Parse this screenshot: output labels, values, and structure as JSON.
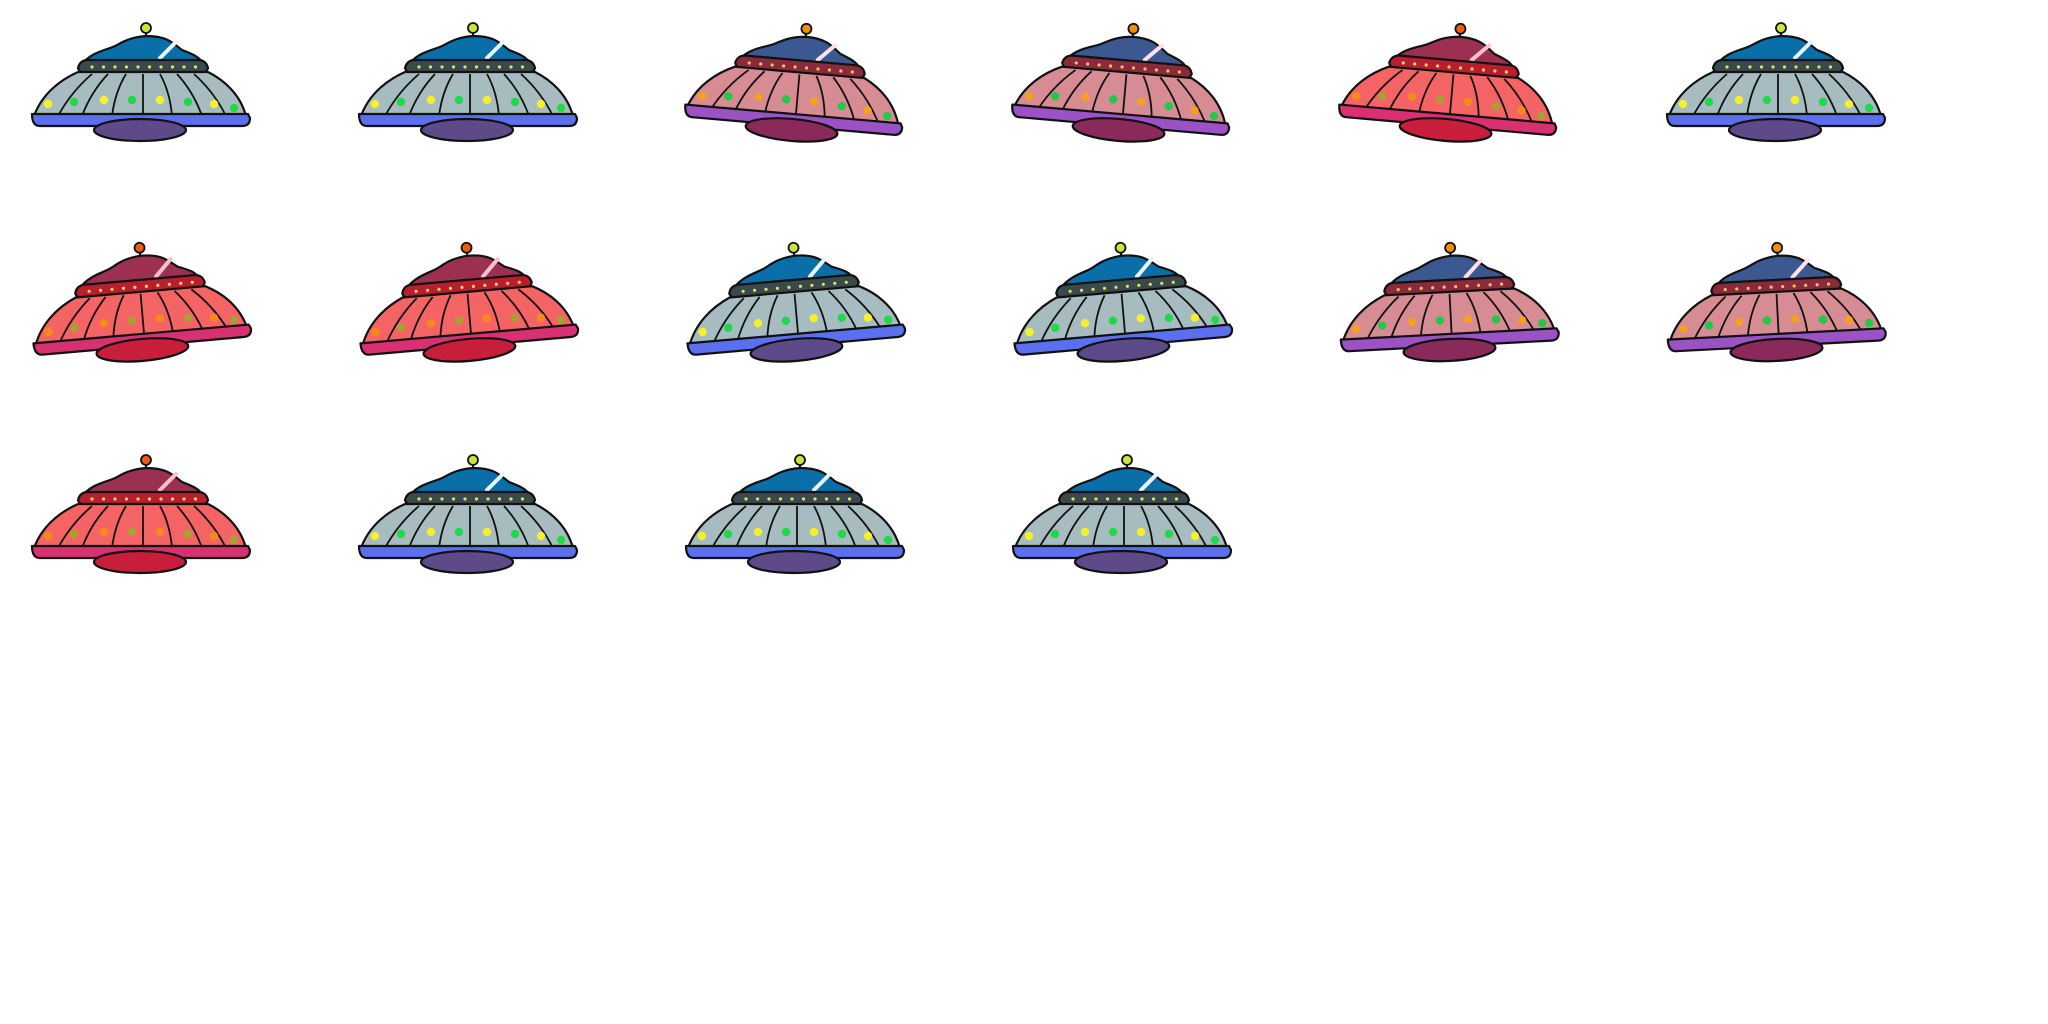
{
  "palettes": {
    "blue": {
      "dome": "#0a6fa8",
      "dome_highlight": "#e8f4ff",
      "antenna": "#c6e83a",
      "band": "#3a4a4a",
      "band_lights": "#d8e070",
      "body": "#a6bcc0",
      "rim": "#5a70f0",
      "belly": "#5d4a88",
      "lights": [
        "#f4f02a",
        "#22d84a"
      ]
    },
    "rose": {
      "dome": "#3c5890",
      "dome_highlight": "#ffe0e8",
      "antenna": "#f0900a",
      "band": "#8a2a3a",
      "band_lights": "#f0c070",
      "body": "#d68c92",
      "rim": "#9b52c4",
      "belly": "#8a2a5a",
      "lights": [
        "#f5a020",
        "#22c84a"
      ]
    },
    "red": {
      "dome": "#9c3050",
      "dome_highlight": "#ffc0cc",
      "antenna": "#f05a10",
      "band": "#b81e2c",
      "band_lights": "#f0d080",
      "body": "#f56464",
      "rim": "#d83070",
      "belly": "#c81e3c",
      "lights": [
        "#f58a1a",
        "#a8a030"
      ]
    }
  },
  "sprites": [
    {
      "palette": "blue",
      "tilt": 0
    },
    {
      "palette": "blue",
      "tilt": 0
    },
    {
      "palette": "rose",
      "tilt": 5
    },
    {
      "palette": "rose",
      "tilt": 5
    },
    {
      "palette": "red",
      "tilt": 5
    },
    {
      "palette": "blue",
      "tilt": 0
    },
    {
      "palette": "red",
      "tilt": -5
    },
    {
      "palette": "red",
      "tilt": -5
    },
    {
      "palette": "blue",
      "tilt": -5
    },
    {
      "palette": "blue",
      "tilt": -5
    },
    {
      "palette": "rose",
      "tilt": -3
    },
    {
      "palette": "rose",
      "tilt": -3
    },
    {
      "palette": "red",
      "tilt": 0
    },
    {
      "palette": "blue",
      "tilt": 0
    },
    {
      "palette": "blue",
      "tilt": 0
    },
    {
      "palette": "blue",
      "tilt": 0
    }
  ]
}
